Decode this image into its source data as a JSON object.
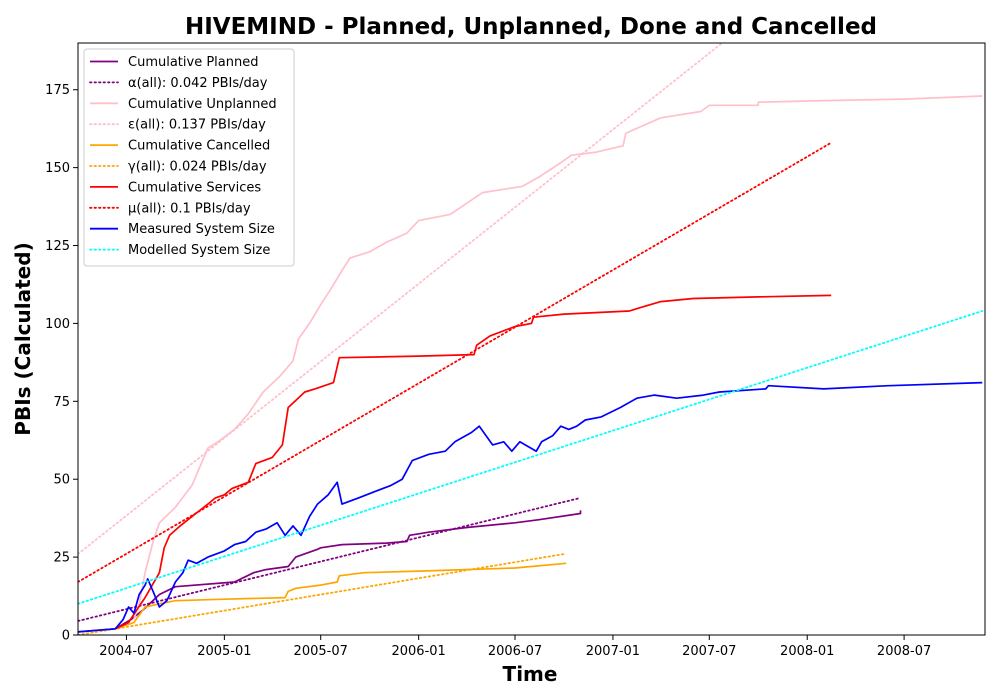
{
  "chart_data": {
    "type": "line",
    "title": "HIVEMIND - Planned, Unplanned, Done  and Cancelled",
    "xlabel": "Time",
    "ylabel": "PBIs (Calculated)",
    "xlim": [
      "2004-04-01",
      "2008-11-30"
    ],
    "ylim": [
      0,
      190
    ],
    "xticks": [
      "2004-07",
      "2005-01",
      "2005-07",
      "2006-01",
      "2006-07",
      "2007-01",
      "2007-07",
      "2008-01",
      "2008-07"
    ],
    "yticks": [
      0,
      25,
      50,
      75,
      100,
      125,
      150,
      175
    ],
    "grid": false,
    "legend_position": "top-left",
    "series": [
      {
        "name": "Cumulative Planned",
        "color": "#800080",
        "style": "solid",
        "points": [
          [
            "2004-04-01",
            1
          ],
          [
            "2004-06-10",
            2
          ],
          [
            "2004-07-10",
            5
          ],
          [
            "2004-08-01",
            8
          ],
          [
            "2004-09-01",
            13
          ],
          [
            "2004-10-01",
            15.5
          ],
          [
            "2005-01-20",
            17
          ],
          [
            "2005-02-25",
            20
          ],
          [
            "2005-03-20",
            21
          ],
          [
            "2005-05-01",
            22
          ],
          [
            "2005-05-15",
            25
          ],
          [
            "2005-06-25",
            27.5
          ],
          [
            "2005-07-01",
            28
          ],
          [
            "2005-08-10",
            29
          ],
          [
            "2005-11-01",
            29.5
          ],
          [
            "2005-12-10",
            30
          ],
          [
            "2005-12-15",
            32
          ],
          [
            "2006-01-20",
            33
          ],
          [
            "2006-04-01",
            34.5
          ],
          [
            "2006-07-01",
            36
          ],
          [
            "2006-08-15",
            37
          ],
          [
            "2006-11-01",
            39
          ],
          [
            "2006-11-01",
            40
          ]
        ]
      },
      {
        "name": "α(all): 0.042 PBIs/day",
        "color": "#800080",
        "style": "dotted",
        "points": [
          [
            "2004-04-01",
            4.5
          ],
          [
            "2006-11-01",
            44
          ]
        ]
      },
      {
        "name": "Cumulative Unplanned",
        "color": "#ffc0cb",
        "style": "solid",
        "points": [
          [
            "2004-07-15",
            5
          ],
          [
            "2004-07-25",
            10
          ],
          [
            "2004-08-05",
            20
          ],
          [
            "2004-08-20",
            30
          ],
          [
            "2004-09-01",
            36
          ],
          [
            "2004-10-01",
            41
          ],
          [
            "2004-11-01",
            48
          ],
          [
            "2004-12-01",
            60
          ],
          [
            "2004-12-20",
            62
          ],
          [
            "2005-01-20",
            66
          ],
          [
            "2005-02-15",
            71
          ],
          [
            "2005-03-15",
            78
          ],
          [
            "2005-04-15",
            83
          ],
          [
            "2005-05-10",
            88
          ],
          [
            "2005-05-20",
            95
          ],
          [
            "2005-06-10",
            100
          ],
          [
            "2005-07-01",
            106
          ],
          [
            "2005-07-20",
            111
          ],
          [
            "2005-08-10",
            117
          ],
          [
            "2005-08-25",
            121
          ],
          [
            "2005-10-01",
            123
          ],
          [
            "2005-11-01",
            126
          ],
          [
            "2005-12-10",
            129
          ],
          [
            "2006-01-01",
            133
          ],
          [
            "2006-03-01",
            135
          ],
          [
            "2006-04-05",
            139
          ],
          [
            "2006-05-01",
            142
          ],
          [
            "2006-07-15",
            144
          ],
          [
            "2006-08-15",
            147
          ],
          [
            "2006-09-20",
            151
          ],
          [
            "2006-10-15",
            154
          ],
          [
            "2006-12-01",
            155
          ],
          [
            "2007-01-20",
            157
          ],
          [
            "2007-01-25",
            161
          ],
          [
            "2007-02-20",
            163
          ],
          [
            "2007-04-01",
            166
          ],
          [
            "2007-06-15",
            168
          ],
          [
            "2007-07-01",
            170
          ],
          [
            "2007-10-01",
            170
          ],
          [
            "2007-10-01",
            171
          ],
          [
            "2008-02-01",
            171.5
          ],
          [
            "2008-07-01",
            172
          ],
          [
            "2008-11-25",
            173
          ]
        ]
      },
      {
        "name": "ε(all): 0.137 PBIs/day",
        "color": "#ffc0cb",
        "style": "dotted",
        "points": [
          [
            "2004-04-01",
            26
          ],
          [
            "2007-07-25",
            190
          ]
        ]
      },
      {
        "name": "Cumulative Cancelled",
        "color": "#ffa500",
        "style": "solid",
        "points": [
          [
            "2004-06-10",
            2
          ],
          [
            "2004-07-15",
            4
          ],
          [
            "2004-08-05",
            9
          ],
          [
            "2004-09-01",
            10
          ],
          [
            "2004-10-01",
            11
          ],
          [
            "2005-01-01",
            11.5
          ],
          [
            "2005-04-25",
            12
          ],
          [
            "2005-05-01",
            14
          ],
          [
            "2005-05-15",
            15
          ],
          [
            "2005-07-01",
            16
          ],
          [
            "2005-08-01",
            17
          ],
          [
            "2005-08-05",
            19
          ],
          [
            "2005-09-20",
            20
          ],
          [
            "2006-01-01",
            20.5
          ],
          [
            "2006-07-01",
            21.5
          ],
          [
            "2006-10-05",
            23
          ]
        ]
      },
      {
        "name": "γ(all): 0.024 PBIs/day",
        "color": "#ffa500",
        "style": "dotted",
        "points": [
          [
            "2004-04-01",
            0
          ],
          [
            "2006-10-01",
            26
          ]
        ]
      },
      {
        "name": "Cumulative Services",
        "color": "#ff0000",
        "style": "solid",
        "points": [
          [
            "2004-06-10",
            2
          ],
          [
            "2004-07-05",
            4
          ],
          [
            "2004-07-20",
            8
          ],
          [
            "2004-08-05",
            12
          ],
          [
            "2004-08-15",
            15
          ],
          [
            "2004-09-01",
            20
          ],
          [
            "2004-09-10",
            28
          ],
          [
            "2004-09-20",
            32
          ],
          [
            "2004-10-10",
            35
          ],
          [
            "2004-11-01",
            38
          ],
          [
            "2004-12-01",
            42
          ],
          [
            "2004-12-15",
            44
          ],
          [
            "2005-01-01",
            45
          ],
          [
            "2005-01-15",
            47
          ],
          [
            "2005-02-15",
            49
          ],
          [
            "2005-03-01",
            55
          ],
          [
            "2005-04-01",
            57
          ],
          [
            "2005-04-20",
            61
          ],
          [
            "2005-05-01",
            73
          ],
          [
            "2005-06-01",
            78
          ],
          [
            "2005-06-20",
            79
          ],
          [
            "2005-07-25",
            81
          ],
          [
            "2005-08-05",
            89
          ],
          [
            "2006-01-01",
            89.5
          ],
          [
            "2006-04-15",
            90
          ],
          [
            "2006-04-20",
            93
          ],
          [
            "2006-05-15",
            96
          ],
          [
            "2006-07-01",
            99
          ],
          [
            "2006-08-01",
            100
          ],
          [
            "2006-08-05",
            102
          ],
          [
            "2006-10-01",
            103
          ],
          [
            "2007-02-01",
            104
          ],
          [
            "2007-02-20",
            105
          ],
          [
            "2007-04-01",
            107
          ],
          [
            "2007-06-01",
            108
          ],
          [
            "2007-10-01",
            108.5
          ],
          [
            "2008-02-15",
            109
          ]
        ]
      },
      {
        "name": "μ(all): 0.1 PBIs/day",
        "color": "#ff0000",
        "style": "dotted",
        "points": [
          [
            "2004-04-01",
            17
          ],
          [
            "2008-02-15",
            158
          ]
        ]
      },
      {
        "name": "Measured System Size",
        "color": "#0000ff",
        "style": "solid",
        "points": [
          [
            "2004-04-01",
            1
          ],
          [
            "2004-06-10",
            2
          ],
          [
            "2004-06-25",
            5
          ],
          [
            "2004-07-05",
            9
          ],
          [
            "2004-07-15",
            7
          ],
          [
            "2004-07-25",
            13
          ],
          [
            "2004-08-05",
            16
          ],
          [
            "2004-08-10",
            18
          ],
          [
            "2004-08-20",
            14
          ],
          [
            "2004-09-01",
            9
          ],
          [
            "2004-09-15",
            11
          ],
          [
            "2004-10-01",
            17
          ],
          [
            "2004-10-15",
            20
          ],
          [
            "2004-10-25",
            24
          ],
          [
            "2004-11-10",
            23
          ],
          [
            "2004-12-01",
            25
          ],
          [
            "2005-01-01",
            27
          ],
          [
            "2005-01-20",
            29
          ],
          [
            "2005-02-10",
            30
          ],
          [
            "2005-03-01",
            33
          ],
          [
            "2005-03-20",
            34
          ],
          [
            "2005-04-10",
            36
          ],
          [
            "2005-04-25",
            32
          ],
          [
            "2005-05-10",
            35
          ],
          [
            "2005-05-25",
            32
          ],
          [
            "2005-06-10",
            38
          ],
          [
            "2005-06-25",
            42
          ],
          [
            "2005-07-15",
            45
          ],
          [
            "2005-08-01",
            49
          ],
          [
            "2005-08-10",
            42
          ],
          [
            "2005-09-10",
            44
          ],
          [
            "2005-10-10",
            46
          ],
          [
            "2005-11-10",
            48
          ],
          [
            "2005-12-01",
            50
          ],
          [
            "2005-12-20",
            56
          ],
          [
            "2006-01-20",
            58
          ],
          [
            "2006-02-20",
            59
          ],
          [
            "2006-03-10",
            62
          ],
          [
            "2006-04-10",
            65
          ],
          [
            "2006-04-25",
            67
          ],
          [
            "2006-05-20",
            61
          ],
          [
            "2006-06-10",
            62
          ],
          [
            "2006-06-25",
            59
          ],
          [
            "2006-07-10",
            62
          ],
          [
            "2006-08-10",
            59
          ],
          [
            "2006-08-20",
            62
          ],
          [
            "2006-09-10",
            64
          ],
          [
            "2006-09-25",
            67
          ],
          [
            "2006-10-10",
            66
          ],
          [
            "2006-10-25",
            67
          ],
          [
            "2006-11-10",
            69
          ],
          [
            "2006-12-10",
            70
          ],
          [
            "2007-01-15",
            73
          ],
          [
            "2007-02-15",
            76
          ],
          [
            "2007-03-20",
            77
          ],
          [
            "2007-05-01",
            76
          ],
          [
            "2007-06-20",
            77
          ],
          [
            "2007-07-20",
            78
          ],
          [
            "2007-10-15",
            79
          ],
          [
            "2007-10-20",
            80
          ],
          [
            "2008-02-01",
            79
          ],
          [
            "2008-06-01",
            80
          ],
          [
            "2008-11-25",
            81
          ]
        ]
      },
      {
        "name": "Modelled System Size",
        "color": "#00ffff",
        "style": "dotted",
        "points": [
          [
            "2004-04-01",
            10
          ],
          [
            "2008-11-25",
            104
          ]
        ]
      }
    ]
  }
}
